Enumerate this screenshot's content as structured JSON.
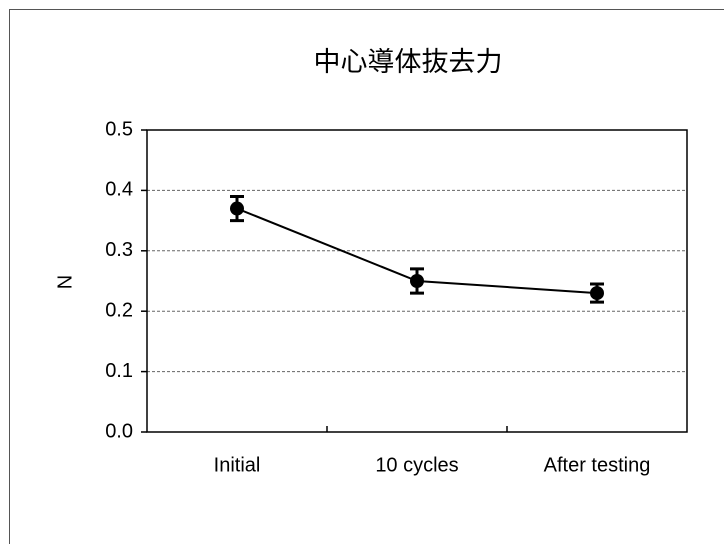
{
  "chart_data": {
    "type": "line",
    "title": "中心導体抜去力",
    "ylabel": "N",
    "categories": [
      "Initial",
      "10 cycles",
      "After testing"
    ],
    "values": [
      0.37,
      0.25,
      0.23
    ],
    "errors": [
      0.02,
      0.02,
      0.015
    ],
    "color": "#000000",
    "ylim": [
      0,
      0.5
    ],
    "yticks": [
      {
        "value": 0,
        "label": "0.0"
      },
      0.1,
      0.2,
      0.3,
      0.4,
      0.5
    ],
    "grid": true
  }
}
